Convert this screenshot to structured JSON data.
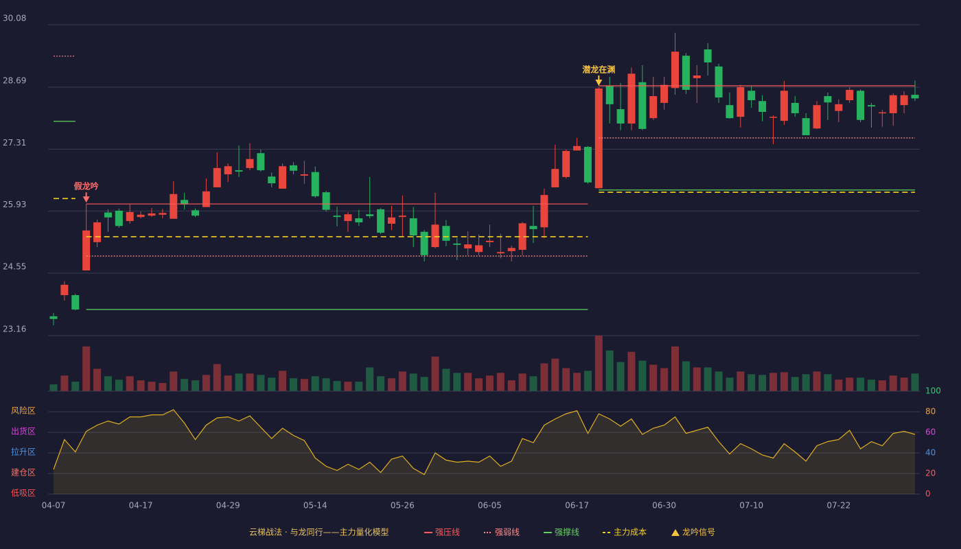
{
  "chart_data": [
    {
      "type": "candlestick",
      "ylim": [
        23.16,
        30.08
      ],
      "yticks": [
        23.16,
        24.55,
        25.93,
        27.31,
        28.69,
        30.08
      ],
      "grid": true,
      "up_color": "#e8453c",
      "down_color": "#27b260",
      "open": [
        23.59,
        24.06,
        24.06,
        24.61,
        25.24,
        25.9,
        25.94,
        25.71,
        25.8,
        25.83,
        25.85,
        25.76,
        26.18,
        25.95,
        26.02,
        26.46,
        26.75,
        26.84,
        26.89,
        27.22,
        26.7,
        26.43,
        26.95,
        26.72,
        26.8,
        26.35,
        25.83,
        25.71,
        25.77,
        25.86,
        25.97,
        25.65,
        25.8,
        25.77,
        25.47,
        25.13,
        25.6,
        25.21,
        25.1,
        25.02,
        25.24,
        24.99,
        25.04,
        25.07,
        25.6,
        25.57,
        26.46,
        26.69,
        27.28,
        27.36,
        26.44,
        28.72,
        28.2,
        27.88,
        28.8,
        28.0,
        28.34,
        28.67,
        29.39,
        28.89,
        29.53,
        29.15,
        28.29,
        28.03,
        28.61,
        28.38,
        28.01,
        27.94,
        28.34,
        28.0,
        27.77,
        28.49,
        28.16,
        28.4,
        28.61,
        28.29,
        28.11,
        28.11,
        28.29,
        28.52
      ],
      "high": [
        23.66,
        24.37,
        24.09,
        26.09,
        25.74,
        25.97,
        25.99,
        26.08,
        25.92,
        26.0,
        25.98,
        26.6,
        26.34,
        25.99,
        26.66,
        27.24,
        26.99,
        27.39,
        27.44,
        27.3,
        26.79,
        26.99,
        27.02,
        27.05,
        26.92,
        26.38,
        26.03,
        25.91,
        25.96,
        26.69,
        26.0,
        26.05,
        26.28,
        26.02,
        25.51,
        26.34,
        25.73,
        25.33,
        25.48,
        25.41,
        25.63,
        25.43,
        25.16,
        25.69,
        26.05,
        26.43,
        27.41,
        27.3,
        27.56,
        27.38,
        28.69,
        28.92,
        28.78,
        29.13,
        29.18,
        28.92,
        28.92,
        29.9,
        29.45,
        29.18,
        29.67,
        29.21,
        28.57,
        28.74,
        28.71,
        28.51,
        28.06,
        28.83,
        28.49,
        28.11,
        28.38,
        28.57,
        28.42,
        28.69,
        28.64,
        28.34,
        28.19,
        28.55,
        28.6,
        28.84
      ],
      "low": [
        23.39,
        23.94,
        23.72,
        24.61,
        25.13,
        25.47,
        25.56,
        25.65,
        25.77,
        25.8,
        25.77,
        25.76,
        25.97,
        25.8,
        26.02,
        26.46,
        26.58,
        26.69,
        26.84,
        26.81,
        26.46,
        26.43,
        26.75,
        26.54,
        26.23,
        25.92,
        25.59,
        25.47,
        25.6,
        25.77,
        25.42,
        25.51,
        25.36,
        25.13,
        24.81,
        25.1,
        25.15,
        24.84,
        24.95,
        24.95,
        25.13,
        24.88,
        24.81,
        24.95,
        25.22,
        25.33,
        26.46,
        26.66,
        27.28,
        26.54,
        26.44,
        27.88,
        27.73,
        27.73,
        27.73,
        27.96,
        28.19,
        28.52,
        28.54,
        28.34,
        28.95,
        28.34,
        27.99,
        27.79,
        28.23,
        27.93,
        27.42,
        27.85,
        28.03,
        27.62,
        27.76,
        27.96,
        27.91,
        28.34,
        27.91,
        27.79,
        27.81,
        27.83,
        28.11,
        28.38
      ],
      "close": [
        23.53,
        24.29,
        23.74,
        25.5,
        25.68,
        25.79,
        25.6,
        25.91,
        25.85,
        25.88,
        25.89,
        26.31,
        26.08,
        25.83,
        26.37,
        26.89,
        26.93,
        26.81,
        27.09,
        26.84,
        26.55,
        26.93,
        26.83,
        26.75,
        26.26,
        25.96,
        25.8,
        25.86,
        25.68,
        25.82,
        25.45,
        25.79,
        25.83,
        25.39,
        24.95,
        25.63,
        25.27,
        25.18,
        25.19,
        25.17,
        25.27,
        25.02,
        25.11,
        25.66,
        25.53,
        26.29,
        26.87,
        27.27,
        27.38,
        26.57,
        28.66,
        28.31,
        27.88,
        28.99,
        27.76,
        28.49,
        28.74,
        29.48,
        28.63,
        28.95,
        29.24,
        28.46,
        28.0,
        28.69,
        28.4,
        28.14,
        28.03,
        28.61,
        28.11,
        27.62,
        28.29,
        28.35,
        28.31,
        28.63,
        27.96,
        28.26,
        28.13,
        28.51,
        28.51,
        28.44
      ],
      "series": [
        {
          "name": "强压线",
          "color": "#ff5a5a",
          "style": "solid",
          "values": [
            null,
            null,
            null,
            26.09,
            26.09,
            26.09,
            26.09,
            26.09,
            26.09,
            26.09,
            26.09,
            26.09,
            26.09,
            26.09,
            26.09,
            26.09,
            26.09,
            26.09,
            26.09,
            26.09,
            26.09,
            26.09,
            26.09,
            26.09,
            26.09,
            26.09,
            26.09,
            26.09,
            26.09,
            26.09,
            26.09,
            26.09,
            26.09,
            26.09,
            26.09,
            26.09,
            26.09,
            26.09,
            26.09,
            26.09,
            26.09,
            26.09,
            26.09,
            26.09,
            26.09,
            26.09,
            26.09,
            26.09,
            26.09,
            26.09,
            28.72,
            28.72,
            28.72,
            28.72,
            28.72,
            28.72,
            28.72,
            28.72,
            28.72,
            28.72,
            28.72,
            28.72,
            28.72,
            28.72,
            28.72,
            28.72,
            28.72,
            28.72,
            28.72,
            28.72,
            28.72,
            28.72,
            28.72,
            28.72,
            28.72,
            28.72,
            28.72,
            28.72,
            28.72,
            28.72
          ]
        },
        {
          "name": "强弱线",
          "color": "#ff8a8a",
          "style": "dotted",
          "values": [
            29.38,
            29.38,
            29.38,
            24.93,
            24.93,
            24.93,
            24.93,
            24.93,
            24.93,
            24.93,
            24.93,
            24.93,
            24.93,
            24.93,
            24.93,
            24.93,
            24.93,
            24.93,
            24.93,
            24.93,
            24.93,
            24.93,
            24.93,
            24.93,
            24.93,
            24.93,
            24.93,
            24.93,
            24.93,
            24.93,
            24.93,
            24.93,
            24.93,
            24.93,
            24.93,
            24.93,
            24.93,
            24.93,
            24.93,
            24.93,
            24.93,
            24.93,
            24.93,
            24.93,
            24.93,
            24.93,
            24.93,
            24.93,
            24.93,
            24.93,
            27.56,
            27.56,
            27.56,
            27.56,
            27.56,
            27.56,
            27.56,
            27.56,
            27.56,
            27.56,
            27.56,
            27.56,
            27.56,
            27.56,
            27.56,
            27.56,
            27.56,
            27.56,
            27.56,
            27.56,
            27.56,
            27.56,
            27.56,
            27.56,
            27.56,
            27.56,
            27.56,
            27.56,
            27.56,
            27.56
          ]
        },
        {
          "name": "强撑线",
          "color": "#5fd35f",
          "style": "solid",
          "values": [
            27.93,
            27.93,
            27.93,
            23.74,
            23.74,
            23.74,
            23.74,
            23.74,
            23.74,
            23.74,
            23.74,
            23.74,
            23.74,
            23.74,
            23.74,
            23.74,
            23.74,
            23.74,
            23.74,
            23.74,
            23.74,
            23.74,
            23.74,
            23.74,
            23.74,
            23.74,
            23.74,
            23.74,
            23.74,
            23.74,
            23.74,
            23.74,
            23.74,
            23.74,
            23.74,
            23.74,
            23.74,
            23.74,
            23.74,
            23.74,
            23.74,
            23.74,
            23.74,
            23.74,
            23.74,
            23.74,
            23.74,
            23.74,
            23.74,
            23.74,
            26.4,
            26.4,
            26.4,
            26.4,
            26.4,
            26.4,
            26.4,
            26.4,
            26.4,
            26.4,
            26.4,
            26.4,
            26.4,
            26.4,
            26.4,
            26.4,
            26.4,
            26.4,
            26.4,
            26.4,
            26.4,
            26.4,
            26.4,
            26.4,
            26.4,
            26.4,
            26.4,
            26.4,
            26.4,
            26.4
          ]
        },
        {
          "name": "主力成本",
          "color": "#f5d020",
          "style": "dashed",
          "values": [
            26.21,
            26.21,
            26.21,
            25.36,
            25.36,
            25.36,
            25.36,
            25.36,
            25.36,
            25.36,
            25.36,
            25.36,
            25.36,
            25.36,
            25.36,
            25.36,
            25.36,
            25.36,
            25.36,
            25.36,
            25.36,
            25.36,
            25.36,
            25.36,
            25.36,
            25.36,
            25.36,
            25.36,
            25.36,
            25.36,
            25.36,
            25.36,
            25.36,
            25.36,
            25.36,
            25.36,
            25.36,
            25.36,
            25.36,
            25.36,
            25.36,
            25.36,
            25.36,
            25.36,
            25.36,
            25.36,
            25.36,
            25.36,
            25.36,
            25.36,
            26.35,
            26.35,
            26.35,
            26.35,
            26.35,
            26.35,
            26.35,
            26.35,
            26.35,
            26.35,
            26.35,
            26.35,
            26.35,
            26.35,
            26.35,
            26.35,
            26.35,
            26.35,
            26.35,
            26.35,
            26.35,
            26.35,
            26.35,
            26.35,
            26.35,
            26.35,
            26.35,
            26.35,
            26.35,
            26.35
          ]
        }
      ],
      "signal_name": "龙吟信号",
      "signal_color": "#f5c242",
      "signals": [
        null,
        null,
        null,
        {
          "label": "假龙吟",
          "color": "#ff6b6b"
        },
        null,
        null,
        null,
        null,
        null,
        null,
        null,
        null,
        null,
        null,
        null,
        null,
        null,
        null,
        null,
        null,
        null,
        null,
        null,
        null,
        null,
        null,
        null,
        null,
        null,
        null,
        null,
        null,
        null,
        null,
        null,
        null,
        null,
        null,
        null,
        null,
        null,
        null,
        null,
        null,
        null,
        null,
        null,
        null,
        null,
        null,
        {
          "label": "潜龙在渊",
          "color": "#f5c242"
        },
        null,
        null,
        null,
        null,
        null,
        null,
        null,
        null,
        null,
        null,
        null,
        null,
        null,
        null,
        null,
        null,
        null,
        null,
        null,
        null,
        null,
        null,
        null,
        null,
        null,
        null,
        null,
        null,
        null
      ]
    },
    {
      "type": "volume",
      "up_color": "#7c2f37",
      "down_color": "#1f5a42",
      "values": [
        10,
        23,
        14,
        66,
        33,
        22,
        17,
        22,
        16,
        14,
        12,
        29,
        18,
        16,
        24,
        40,
        23,
        26,
        26,
        24,
        20,
        30,
        19,
        18,
        22,
        19,
        15,
        14,
        14,
        35,
        22,
        19,
        29,
        26,
        21,
        51,
        33,
        27,
        27,
        19,
        23,
        27,
        16,
        26,
        22,
        41,
        48,
        34,
        27,
        30,
        82,
        60,
        43,
        58,
        45,
        39,
        34,
        66,
        44,
        35,
        35,
        29,
        20,
        29,
        25,
        24,
        27,
        28,
        21,
        25,
        29,
        25,
        17,
        20,
        20,
        17,
        16,
        23,
        20,
        26
      ]
    },
    {
      "type": "line",
      "color": "#e0b020",
      "ylim": [
        0,
        100
      ],
      "yticks": [
        0,
        20,
        40,
        60,
        80,
        100
      ],
      "ytick_colors": [
        "#ff4d4d",
        "#ff5a5a",
        "#4a90e2",
        "#e040e0",
        "#f0a030",
        "#2ecc71"
      ],
      "zone_labels": [
        "低吸区",
        "建仓区",
        "拉升区",
        "出货区",
        "风险区"
      ],
      "zone_colors": [
        "#ff4d4d",
        "#ff6b5a",
        "#4a90e2",
        "#e040e0",
        "#f0a030"
      ],
      "categories": [
        "04-07",
        null,
        null,
        null,
        null,
        null,
        null,
        null,
        "04-17",
        null,
        null,
        null,
        null,
        null,
        null,
        null,
        "04-29",
        null,
        null,
        null,
        null,
        null,
        null,
        null,
        "05-14",
        null,
        null,
        null,
        null,
        null,
        null,
        null,
        "05-26",
        null,
        null,
        null,
        null,
        null,
        null,
        null,
        "06-05",
        null,
        null,
        null,
        null,
        null,
        null,
        null,
        "06-17",
        null,
        null,
        null,
        null,
        null,
        null,
        null,
        "06-30",
        null,
        null,
        null,
        null,
        null,
        null,
        null,
        "07-10",
        null,
        null,
        null,
        null,
        null,
        null,
        null,
        "07-22",
        null,
        null,
        null,
        null,
        null,
        null,
        null
      ],
      "values": [
        24,
        53,
        41,
        61,
        67,
        71,
        68,
        75,
        75,
        77,
        77,
        82,
        69,
        53,
        67,
        74,
        75,
        71,
        76,
        65,
        54,
        64,
        57,
        52,
        35,
        27,
        23,
        29,
        24,
        31,
        21,
        34,
        37,
        25,
        19,
        40,
        33,
        31,
        32,
        31,
        37,
        27,
        32,
        54,
        50,
        67,
        73,
        78,
        81,
        59,
        78,
        73,
        66,
        73,
        58,
        64,
        67,
        75,
        59,
        62,
        65,
        51,
        39,
        49,
        44,
        38,
        35,
        49,
        41,
        32,
        47,
        51,
        53,
        62,
        44,
        51,
        47,
        59,
        61,
        58
      ],
      "legend_title": "云梯战法 · 与龙同行——主力量化模型"
    }
  ]
}
